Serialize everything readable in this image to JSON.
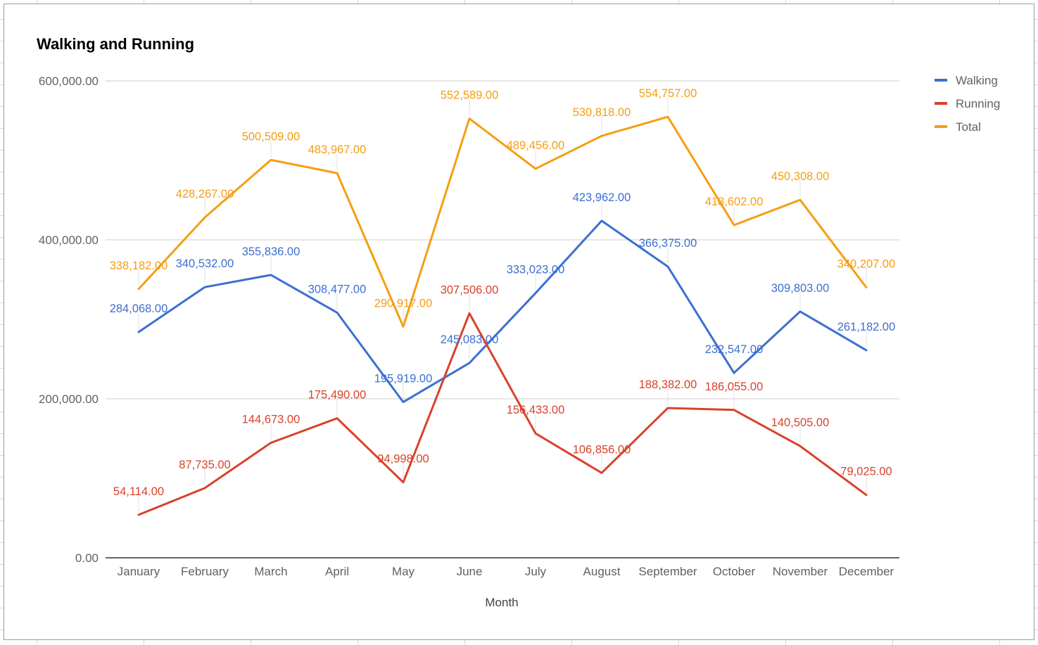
{
  "chart_data": {
    "type": "line",
    "title": "Walking and Running",
    "xlabel": "Month",
    "ylabel": "",
    "categories": [
      "January",
      "February",
      "March",
      "April",
      "May",
      "June",
      "July",
      "August",
      "September",
      "October",
      "November",
      "December"
    ],
    "ylim": [
      0,
      600000
    ],
    "yticks": [
      0,
      200000,
      400000,
      600000
    ],
    "ytick_labels": [
      "0.00",
      "200,000.00",
      "400,000.00",
      "600,000.00"
    ],
    "grid": true,
    "legend_position": "right",
    "series": [
      {
        "name": "Walking",
        "color": "#3c6fd1",
        "values": [
          284068,
          340532,
          355836,
          308477,
          195919,
          245083,
          333023,
          423962,
          366375,
          232547,
          309803,
          261182
        ],
        "labels": [
          "284,068.00",
          "340,532.00",
          "355,836.00",
          "308,477.00",
          "195,919.00",
          "245,083.00",
          "333,023.00",
          "423,962.00",
          "366,375.00",
          "232,547.00",
          "309,803.00",
          "261,182.00"
        ]
      },
      {
        "name": "Running",
        "color": "#d8422b",
        "values": [
          54114,
          87735,
          144673,
          175490,
          94998,
          307506,
          156433,
          106856,
          188382,
          186055,
          140505,
          79025
        ],
        "labels": [
          "54,114.00",
          "87,735.00",
          "144,673.00",
          "175,490.00",
          "94,998.00",
          "307,506.00",
          "156,433.00",
          "106,856.00",
          "188,382.00",
          "186,055.00",
          "140,505.00",
          "79,025.00"
        ]
      },
      {
        "name": "Total",
        "color": "#f59e12",
        "values": [
          338182,
          428267,
          500509,
          483967,
          290917,
          552589,
          489456,
          530818,
          554757,
          418602,
          450308,
          340207
        ],
        "labels": [
          "338,182.00",
          "428,267.00",
          "500,509.00",
          "483,967.00",
          "290,917.00",
          "552,589.00",
          "489,456.00",
          "530,818.00",
          "554,757.00",
          "418,602.00",
          "450,308.00",
          "340,207.00"
        ]
      }
    ]
  }
}
